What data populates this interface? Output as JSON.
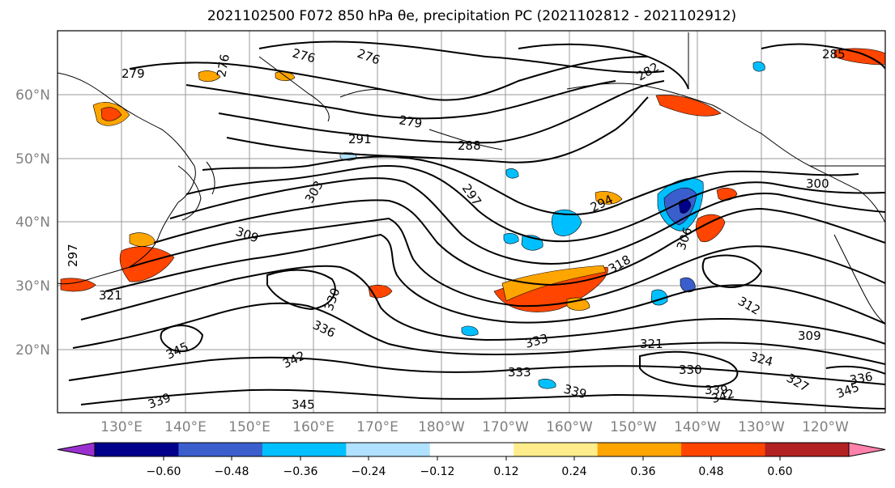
{
  "title": "2021102500 F072 850 hPa θe, precipitation PC (2021102812 - 2021102912)",
  "map": {
    "lat_labels": [
      "60°N",
      "50°N",
      "40°N",
      "30°N",
      "20°N"
    ],
    "lon_labels": [
      "130°E",
      "140°E",
      "150°E",
      "160°E",
      "170°E",
      "180°W",
      "170°W",
      "160°W",
      "150°W",
      "140°W",
      "130°W",
      "120°W"
    ],
    "contour_labels": [
      "279",
      "276",
      "276",
      "276",
      "285",
      "282",
      "279",
      "288",
      "291",
      "297",
      "294",
      "300",
      "303",
      "309",
      "297",
      "318",
      "306",
      "312",
      "309",
      "321",
      "330",
      "336",
      "330",
      "333",
      "324",
      "321",
      "345",
      "342",
      "333",
      "339",
      "345",
      "339",
      "342",
      "336",
      "345",
      "327",
      "339"
    ]
  },
  "colorbar": {
    "colors": [
      "#9b30d0",
      "#00008b",
      "#3a5fcd",
      "#00bfff",
      "#b0e2ff",
      "#ffffff",
      "#ffec8b",
      "#ffa500",
      "#ff4500",
      "#b22222",
      "#ff82ab"
    ],
    "tick_labels": [
      "−0.60",
      "−0.48",
      "−0.36",
      "−0.24",
      "−0.12",
      "0.12",
      "0.24",
      "0.36",
      "0.48",
      "0.60"
    ]
  }
}
